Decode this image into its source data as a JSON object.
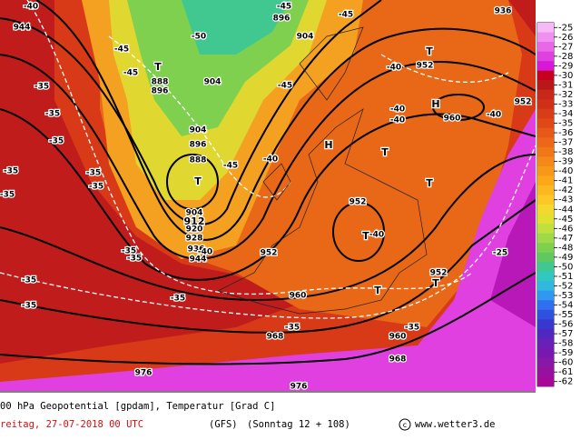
{
  "map": {
    "labels": [
      "-40",
      "944",
      "-45",
      "896",
      "-45",
      "936",
      "-50",
      "904",
      "-45",
      "-45",
      "T",
      "888",
      "896",
      "904",
      "-45",
      "-40",
      "T",
      "952",
      "-40",
      "-40",
      "H",
      "960",
      "-40",
      "952",
      "-35",
      "-35",
      "-35",
      "-35",
      "-35",
      "-35",
      "-35",
      "904",
      "896",
      "888",
      "-45",
      "-40",
      "T",
      "H",
      "T",
      "T",
      "904",
      "912",
      "920",
      "928",
      "936",
      "944",
      "-40",
      "952",
      "952",
      "T",
      "-40",
      "-35",
      "-35",
      "-25",
      "-35",
      "-35",
      "952",
      "T",
      "T",
      "960",
      "-35",
      "-35",
      "968",
      "-35",
      "960",
      "968",
      "976",
      "976"
    ]
  },
  "colorbar": {
    "labels": [
      "-25",
      "-26",
      "-27",
      "-28",
      "-29",
      "-30",
      "-31",
      "-32",
      "-33",
      "-34",
      "-35",
      "-36",
      "-37",
      "-38",
      "-39",
      "-40",
      "-41",
      "-42",
      "-43",
      "-44",
      "-45",
      "-46",
      "-47",
      "-48",
      "-49",
      "-50",
      "-51",
      "-52",
      "-53",
      "-54",
      "-55",
      "-56",
      "-57",
      "-58",
      "-59",
      "-60",
      "-61",
      "-62"
    ],
    "colors": [
      "#f6b8f6",
      "#f090f0",
      "#e868e8",
      "#e040e0",
      "#d818d8",
      "#c80020",
      "#b81818",
      "#c82818",
      "#d03018",
      "#d83c18",
      "#e04818",
      "#e85818",
      "#ec6818",
      "#f07818",
      "#f48818",
      "#f89818",
      "#fca818",
      "#fcb820",
      "#fcc828",
      "#f4d830",
      "#e0e030",
      "#c0e040",
      "#a0d848",
      "#80d050",
      "#60c860",
      "#40c890",
      "#30c8c0",
      "#30b8e0",
      "#3098f0",
      "#3070f0",
      "#3050e0",
      "#3838d0",
      "#5028c0",
      "#6820b8",
      "#7818b0",
      "#8818a8",
      "#9810a0",
      "#a80898"
    ]
  },
  "footer": {
    "title": "00 hPa Geopotential [gpdam], Temperatur [Grad C]",
    "date": "reitag, 27-07-2018  00 UTC",
    "model": "(GFS)",
    "run": "(Sonntag 12 + 108)",
    "credit": "www.wetter3.de"
  }
}
